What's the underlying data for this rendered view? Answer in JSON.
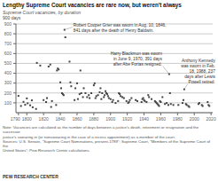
{
  "chart_data": {
    "type": "scatter",
    "title": "Lengthy Supreme Court vacancies are rare now, but weren't always",
    "subtitle": "Supreme Court vacancies, by duration",
    "ylabel": "900 days",
    "note": "Note: Vacancies are calculated as the number of days between a justice's death, retirement or resignation and the successor\njustice's swearing in (or nonswearing in the case of a recess appointment) as a member of the court.\nSources: U.S. Senate, \"Supreme Court Nominations, present-1789\"; Supreme Court, \"Members of the Supreme Court of the\nUnited States\"; Pew Research Center calculations.",
    "footer": "PEW RESEARCH CENTER",
    "color": "#444444",
    "marker": "square",
    "grid": true,
    "xlim": [
      1787,
      2022
    ],
    "xticks": [
      1790,
      1800,
      1820,
      1840,
      1860,
      1880,
      1900,
      1920,
      1940,
      1960,
      1980,
      2000,
      2020
    ],
    "ylim": [
      0,
      900
    ],
    "yticks": [
      100,
      200,
      300,
      400,
      500,
      600,
      700,
      800,
      900
    ],
    "x": [
      1790,
      1793,
      1796,
      1798,
      1800,
      1801,
      1804,
      1806,
      1807,
      1811,
      1812,
      1816,
      1820,
      1823,
      1824,
      1826,
      1828,
      1829,
      1830,
      1835,
      1836,
      1837,
      1838,
      1840,
      1841,
      1842,
      1843,
      1844,
      1845,
      1846,
      1851,
      1852,
      1853,
      1857,
      1858,
      1860,
      1861,
      1863,
      1864,
      1865,
      1867,
      1868,
      1870,
      1872,
      1874,
      1875,
      1877,
      1880,
      1881,
      1882,
      1883,
      1885,
      1887,
      1888,
      1889,
      1890,
      1892,
      1893,
      1894,
      1895,
      1896,
      1897,
      1898,
      1900,
      1902,
      1903,
      1906,
      1909,
      1910,
      1911,
      1912,
      1914,
      1916,
      1919,
      1921,
      1922,
      1923,
      1925,
      1930,
      1932,
      1937,
      1938,
      1939,
      1940,
      1941,
      1943,
      1945,
      1946,
      1949,
      1953,
      1954,
      1955,
      1956,
      1957,
      1958,
      1959,
      1960,
      1962,
      1965,
      1967,
      1969,
      1970,
      1971,
      1972,
      1975,
      1981,
      1986,
      1987,
      1988,
      1990,
      1991,
      1993,
      1994,
      2005,
      2006,
      2009,
      2010,
      2016,
      2017,
      2018
    ],
    "values": [
      170,
      68,
      110,
      80,
      145,
      95,
      75,
      125,
      55,
      38,
      505,
      478,
      128,
      108,
      148,
      468,
      488,
      58,
      118,
      78,
      428,
      448,
      438,
      308,
      248,
      198,
      188,
      178,
      841,
      765,
      518,
      308,
      268,
      128,
      248,
      298,
      138,
      188,
      428,
      198,
      158,
      248,
      198,
      158,
      178,
      148,
      198,
      278,
      298,
      148,
      168,
      178,
      208,
      248,
      138,
      198,
      158,
      178,
      218,
      198,
      188,
      168,
      148,
      138,
      108,
      128,
      98,
      118,
      198,
      188,
      168,
      158,
      148,
      118,
      98,
      108,
      128,
      148,
      128,
      118,
      108,
      138,
      148,
      128,
      118,
      108,
      178,
      158,
      138,
      118,
      108,
      98,
      88,
      78,
      68,
      118,
      108,
      158,
      88,
      98,
      78,
      391,
      198,
      88,
      78,
      78,
      98,
      128,
      237,
      88,
      78,
      68,
      58,
      88,
      98,
      78,
      68,
      108,
      78,
      68
    ],
    "annotations": [
      {
        "text": "Robert Cooper Grier was sworn in Aug. 10, 1846,\n841 days after the death of Henry Baldwin.",
        "x": 1845,
        "y": 841
      },
      {
        "text": "Harry Blackmun was sworn\nin June 9, 1970, 391 days\nafter Abe Fortas resigned.",
        "x": 1970,
        "y": 391
      },
      {
        "text": "Anthony Kennedy\nwas sworn in Feb.\n18, 1988, 237\ndays after Lewis\nPowell retired.",
        "x": 1988,
        "y": 237
      }
    ]
  }
}
